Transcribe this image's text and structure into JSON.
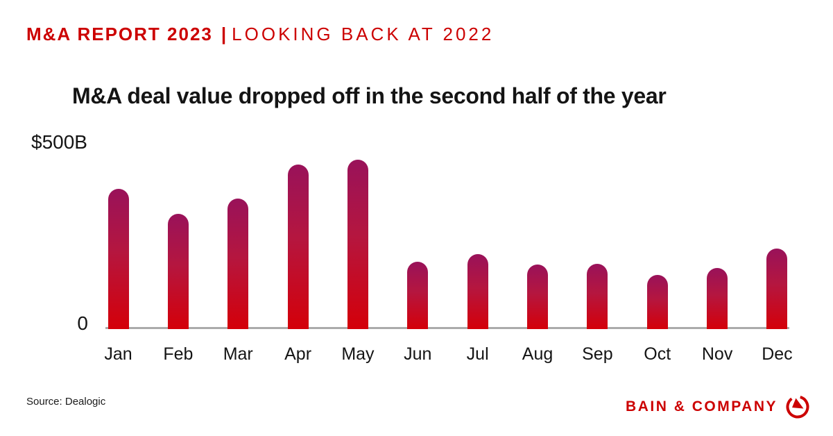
{
  "header": {
    "kicker_bold": "M&A REPORT 2023",
    "kicker_separator": "|",
    "kicker_rest": "LOOKING BACK AT 2022"
  },
  "chart_data": {
    "type": "bar",
    "title": "M&A deal value dropped off in the second half of the year",
    "categories": [
      "Jan",
      "Feb",
      "Mar",
      "Apr",
      "May",
      "Jun",
      "Jul",
      "Aug",
      "Sep",
      "Oct",
      "Nov",
      "Dec"
    ],
    "values": [
      377,
      310,
      351,
      442,
      455,
      181,
      201,
      173,
      175,
      146,
      164,
      216
    ],
    "ylabel_top": "$500B",
    "ylabel_zero": "0",
    "ylim": [
      0,
      500
    ],
    "grid": false,
    "legend": "none",
    "bar_colors": {
      "top": "#99125A",
      "mid": "#B5163F",
      "bottom": "#D40009"
    }
  },
  "footer": {
    "source": "Source: Dealogic",
    "brand": "BAIN & COMPANY",
    "logo_icon": "bain-compass-icon"
  },
  "colors": {
    "accent": "#CC0000",
    "text": "#141414",
    "axis_line": "#ABABAB",
    "background": "#FFFFFF"
  }
}
